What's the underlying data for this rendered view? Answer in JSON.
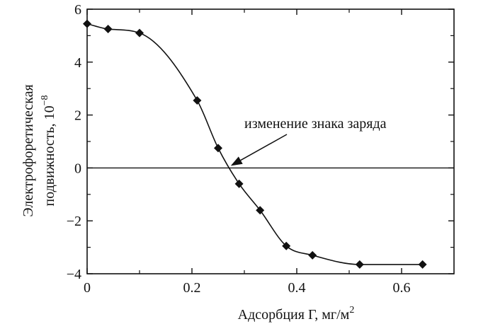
{
  "chart_data": {
    "type": "scatter",
    "x": [
      0.0,
      0.04,
      0.1,
      0.21,
      0.25,
      0.29,
      0.33,
      0.38,
      0.43,
      0.52,
      0.64
    ],
    "y": [
      5.45,
      5.25,
      5.1,
      2.55,
      0.75,
      -0.6,
      -1.6,
      -2.95,
      -3.3,
      -3.65,
      -3.65
    ],
    "xlim": [
      0,
      0.7
    ],
    "ylim": [
      -4,
      6
    ],
    "x_ticks": [
      0,
      0.2,
      0.4,
      0.6
    ],
    "x_tick_labels": [
      "0",
      "0.2",
      "0.4",
      "0.6"
    ],
    "y_ticks": [
      -4,
      -2,
      0,
      2,
      4,
      6
    ],
    "y_tick_labels": [
      "−4",
      "−2",
      "0",
      "2",
      "4",
      "6"
    ],
    "xlabel": "Адсорбция Г, мг/м",
    "xlabel_sup": "2",
    "ylabel_line1": "Электрофоретическая",
    "ylabel_line2": "подвижность, 10",
    "ylabel_sup": "−8",
    "reference_line_y": 0,
    "annotation": {
      "text": "изменение знака заряда",
      "arrow_to": [
        0.27,
        0
      ]
    },
    "grid": false,
    "marker": "diamond",
    "color": "#111111"
  }
}
